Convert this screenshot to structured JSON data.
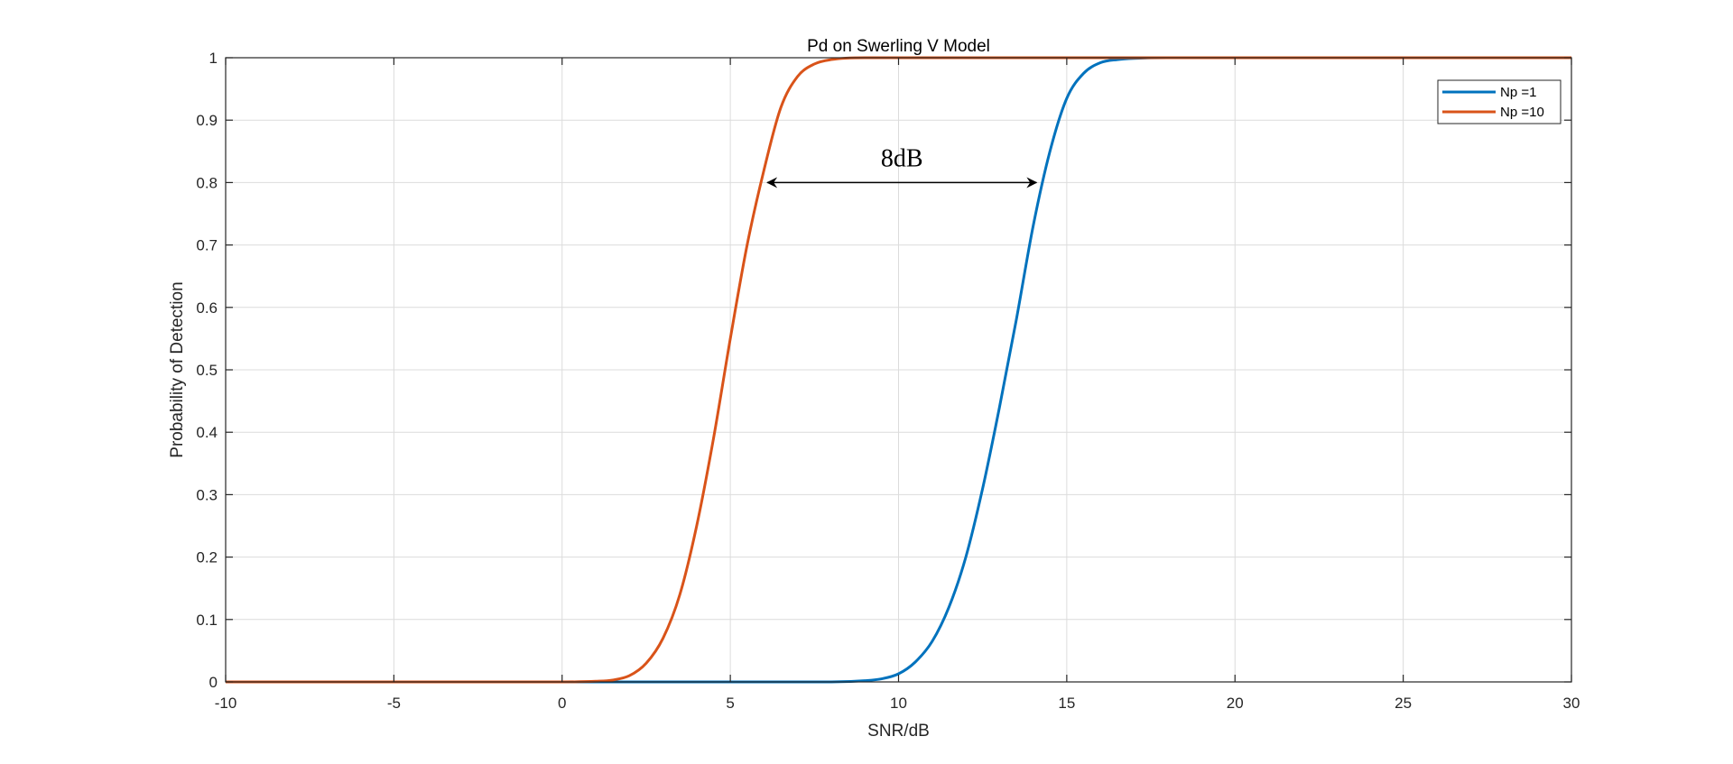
{
  "chart_data": {
    "type": "line",
    "title": "Pd on Swerling V Model",
    "xlabel": "SNR/dB",
    "ylabel": "Probability of Detection",
    "xlim": [
      -10,
      30
    ],
    "ylim": [
      0,
      1
    ],
    "xticks": [
      -10,
      -5,
      0,
      5,
      10,
      15,
      20,
      25,
      30
    ],
    "yticks": [
      0,
      0.1,
      0.2,
      0.3,
      0.4,
      0.5,
      0.6,
      0.7,
      0.8,
      0.9,
      1
    ],
    "grid": true,
    "legend_position": "top-right",
    "series": [
      {
        "name": "Np =1",
        "color": "#0072BD",
        "x": [
          -10,
          0,
          8,
          9,
          9.5,
          10,
          10.5,
          11,
          11.5,
          12,
          12.5,
          13,
          13.5,
          14,
          14.5,
          15,
          15.5,
          16,
          16.5,
          17,
          18,
          20,
          30
        ],
        "y": [
          0,
          0,
          0.0,
          0.002,
          0.005,
          0.013,
          0.032,
          0.065,
          0.12,
          0.2,
          0.31,
          0.44,
          0.58,
          0.73,
          0.85,
          0.935,
          0.975,
          0.992,
          0.997,
          0.999,
          1,
          1,
          1
        ]
      },
      {
        "name": "Np =10",
        "color": "#D95319",
        "x": [
          -10,
          0,
          1,
          1.5,
          2,
          2.5,
          3,
          3.5,
          4,
          4.5,
          5,
          5.5,
          6,
          6.5,
          7,
          7.5,
          8,
          9,
          10,
          30
        ],
        "y": [
          0,
          0,
          0.001,
          0.003,
          0.01,
          0.03,
          0.07,
          0.14,
          0.25,
          0.39,
          0.55,
          0.7,
          0.82,
          0.92,
          0.97,
          0.99,
          0.997,
          1,
          1,
          1
        ]
      }
    ],
    "annotation": {
      "text": "8dB",
      "from": [
        6.1,
        0.8
      ],
      "to": [
        14.1,
        0.8
      ]
    }
  }
}
